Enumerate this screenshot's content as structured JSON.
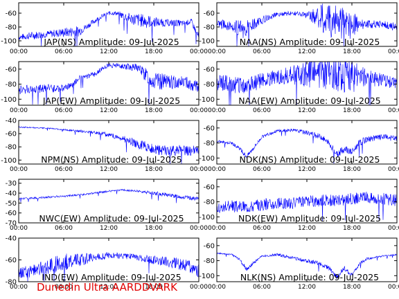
{
  "figure": {
    "footer": "Dunedin Ultra AARDDVARK",
    "line_color": "#0000ff",
    "footer_color": "#e00000"
  },
  "chart_data": [
    {
      "type": "line",
      "title": "JAP(NS) Amplitude: 09-Jul-2025",
      "xlabel": "",
      "ylabel": "",
      "xlim": [
        "00:00",
        "24:00"
      ],
      "x_ticks": [
        "00:00",
        "06:00",
        "12:00",
        "18:00",
        "00:00"
      ],
      "ylim": [
        -108,
        -45
      ],
      "y_ticks": [
        -60,
        -80,
        -100
      ],
      "series": [
        {
          "x": [
            0,
            2,
            4,
            6,
            8,
            9,
            10,
            11,
            12,
            13,
            14,
            15,
            16,
            17,
            18,
            19,
            20,
            21,
            22,
            23,
            24
          ],
          "values": [
            -95,
            -92,
            -90,
            -88,
            -86,
            -80,
            -72,
            -65,
            -60,
            -60,
            -64,
            -68,
            -70,
            -72,
            -72,
            -74,
            -74,
            -74,
            -75,
            -72,
            -95
          ],
          "spread": [
            4,
            6,
            5,
            7,
            8,
            4,
            4,
            3,
            3,
            3,
            6,
            8,
            10,
            10,
            8,
            6,
            5,
            5,
            4,
            4,
            6
          ]
        }
      ]
    },
    {
      "type": "line",
      "title": "NAA(NS) Amplitude: 09-Jul-2025",
      "xlabel": "",
      "ylabel": "",
      "xlim": [
        "00:00",
        "24:00"
      ],
      "x_ticks": [
        "00:00",
        "06:00",
        "12:00",
        "18:00",
        "00:00"
      ],
      "ylim": [
        -108,
        -45
      ],
      "y_ticks": [
        -60,
        -80,
        -100
      ],
      "series": [
        {
          "x": [
            0,
            2,
            3,
            4,
            6,
            8,
            10,
            12,
            13,
            14,
            15,
            16,
            17,
            18,
            19,
            20,
            22,
            24
          ],
          "values": [
            -75,
            -78,
            -84,
            -82,
            -70,
            -62,
            -60,
            -63,
            -65,
            -68,
            -70,
            -72,
            -74,
            -75,
            -76,
            -76,
            -76,
            -80
          ],
          "spread": [
            6,
            8,
            14,
            12,
            6,
            3,
            3,
            4,
            12,
            22,
            25,
            25,
            25,
            22,
            8,
            6,
            5,
            6
          ]
        }
      ]
    },
    {
      "type": "line",
      "title": "JAP(EW) Amplitude: 09-Jul-2025",
      "xlabel": "",
      "ylabel": "",
      "xlim": [
        "00:00",
        "24:00"
      ],
      "x_ticks": [
        "00:00",
        "06:00",
        "12:00",
        "18:00",
        "00:00"
      ],
      "ylim": [
        -108,
        -50
      ],
      "y_ticks": [
        -60,
        -80,
        -100
      ],
      "series": [
        {
          "x": [
            0,
            2,
            4,
            6,
            7,
            8,
            10,
            11,
            12,
            14,
            16,
            17,
            18,
            20,
            22,
            24
          ],
          "values": [
            -88,
            -86,
            -86,
            -85,
            -82,
            -72,
            -68,
            -60,
            -55,
            -56,
            -58,
            -68,
            -75,
            -78,
            -76,
            -85
          ],
          "spread": [
            6,
            6,
            6,
            5,
            4,
            4,
            4,
            3,
            3,
            4,
            6,
            10,
            12,
            10,
            8,
            8
          ]
        }
      ]
    },
    {
      "type": "line",
      "title": "NAA(EW) Amplitude: 09-Jul-2025",
      "xlabel": "",
      "ylabel": "",
      "xlim": [
        "00:00",
        "24:00"
      ],
      "x_ticks": [
        "00:00",
        "06:00",
        "12:00",
        "18:00",
        "00:00"
      ],
      "ylim": [
        -108,
        -50
      ],
      "y_ticks": [
        -60,
        -80,
        -100
      ],
      "series": [
        {
          "x": [
            0,
            2,
            4,
            6,
            8,
            10,
            12,
            14,
            16,
            18,
            20,
            22,
            24
          ],
          "values": [
            -78,
            -80,
            -82,
            -75,
            -70,
            -68,
            -66,
            -65,
            -66,
            -70,
            -72,
            -74,
            -80
          ],
          "spread": [
            10,
            12,
            12,
            10,
            10,
            12,
            18,
            22,
            24,
            22,
            12,
            8,
            8
          ]
        }
      ]
    },
    {
      "type": "line",
      "title": "NPM(NS) Amplitude: 09-Jul-2025",
      "xlabel": "",
      "ylabel": "",
      "xlim": [
        "00:00",
        "24:00"
      ],
      "x_ticks": [
        "00:00",
        "06:00",
        "12:00",
        "18:00",
        "00:00"
      ],
      "ylim": [
        -106,
        -40
      ],
      "y_ticks": [
        -40,
        -60,
        -80,
        -100
      ],
      "series": [
        {
          "x": [
            0,
            2,
            4,
            6,
            8,
            10,
            11,
            12,
            13,
            14,
            15,
            16,
            17,
            18,
            20,
            22,
            24
          ],
          "values": [
            -50,
            -51,
            -52,
            -54,
            -56,
            -58,
            -60,
            -62,
            -64,
            -68,
            -72,
            -76,
            -80,
            -84,
            -86,
            -85,
            -86
          ],
          "spread": [
            1,
            1,
            1,
            1,
            2,
            2,
            3,
            4,
            4,
            5,
            6,
            7,
            8,
            8,
            8,
            8,
            8
          ]
        }
      ]
    },
    {
      "type": "line",
      "title": "NDK(NS) Amplitude: 09-Jul-2025",
      "xlabel": "",
      "ylabel": "",
      "xlim": [
        "00:00",
        "24:00"
      ],
      "x_ticks": [
        "00:00",
        "06:00",
        "12:00",
        "18:00",
        "00:00"
      ],
      "ylim": [
        -108,
        -50
      ],
      "y_ticks": [
        -60,
        -80,
        -100
      ],
      "series": [
        {
          "x": [
            0,
            2,
            3,
            4,
            5,
            6,
            8,
            10,
            12,
            14,
            15,
            16,
            17,
            18,
            19,
            20,
            22,
            24
          ],
          "values": [
            -78,
            -80,
            -88,
            -98,
            -85,
            -72,
            -64,
            -63,
            -66,
            -72,
            -82,
            -95,
            -88,
            -92,
            -80,
            -75,
            -72,
            -74
          ],
          "spread": [
            2,
            2,
            3,
            3,
            3,
            2,
            2,
            2,
            3,
            4,
            5,
            5,
            5,
            5,
            5,
            4,
            4,
            4
          ]
        }
      ]
    },
    {
      "type": "line",
      "title": "NWC(EW) Amplitude: 09-Jul-2025",
      "xlabel": "",
      "ylabel": "",
      "xlim": [
        "00:00",
        "24:00"
      ],
      "x_ticks": [
        "00:00",
        "06:00",
        "12:00",
        "18:00",
        "00:00"
      ],
      "ylim": [
        -70,
        -26
      ],
      "y_ticks": [
        -30,
        -40,
        -50,
        -60,
        -70
      ],
      "series": [
        {
          "x": [
            0,
            2,
            4,
            6,
            8,
            10,
            12,
            14,
            16,
            18,
            20,
            22,
            24
          ],
          "values": [
            -46,
            -45,
            -44,
            -43,
            -42,
            -40,
            -38,
            -37,
            -38,
            -40,
            -42,
            -44,
            -46
          ],
          "spread": [
            1,
            1,
            1,
            1,
            1,
            1,
            1,
            1,
            1,
            2,
            2,
            2,
            2
          ]
        }
      ]
    },
    {
      "type": "line",
      "title": "NDK(EW) Amplitude: 09-Jul-2025",
      "xlabel": "",
      "ylabel": "",
      "xlim": [
        "00:00",
        "24:00"
      ],
      "x_ticks": [
        "00:00",
        "06:00",
        "12:00",
        "18:00",
        "00:00"
      ],
      "ylim": [
        -108,
        -50
      ],
      "y_ticks": [
        -60,
        -80,
        -100
      ],
      "series": [
        {
          "x": [
            0,
            2,
            4,
            6,
            8,
            10,
            12,
            14,
            16,
            18,
            20,
            22,
            24
          ],
          "values": [
            -88,
            -86,
            -86,
            -84,
            -82,
            -82,
            -80,
            -78,
            -78,
            -76,
            -74,
            -76,
            -78
          ],
          "spread": [
            8,
            8,
            8,
            8,
            8,
            8,
            8,
            8,
            8,
            8,
            8,
            8,
            8
          ]
        }
      ]
    },
    {
      "type": "line",
      "title": "IND(EW) Amplitude: 09-Jul-2025",
      "xlabel": "",
      "ylabel": "",
      "xlim": [
        "00:00",
        "24:00"
      ],
      "x_ticks": [
        "00:00",
        "06:00",
        "12:00",
        "18:00",
        "00:00"
      ],
      "ylim": [
        -80,
        -40
      ],
      "y_ticks": [
        -40,
        -60,
        -80
      ],
      "series": [
        {
          "x": [
            0,
            2,
            4,
            6,
            8,
            10,
            12,
            14,
            16,
            18,
            20,
            22,
            24
          ],
          "values": [
            -72,
            -70,
            -66,
            -62,
            -60,
            -58,
            -56,
            -56,
            -58,
            -60,
            -62,
            -64,
            -70
          ],
          "spread": [
            5,
            6,
            7,
            8,
            6,
            4,
            3,
            3,
            3,
            4,
            5,
            6,
            6
          ]
        }
      ]
    },
    {
      "type": "line",
      "title": "NLK(NS) Amplitude: 09-Jul-2025",
      "xlabel": "",
      "ylabel": "",
      "xlim": [
        "00:00",
        "24:00"
      ],
      "x_ticks": [
        "00:00",
        "06:00",
        "12:00",
        "18:00",
        "00:00"
      ],
      "ylim": [
        -108,
        -50
      ],
      "y_ticks": [
        -60,
        -80,
        -100
      ],
      "series": [
        {
          "x": [
            0,
            2,
            3,
            4,
            5,
            6,
            8,
            10,
            12,
            14,
            15,
            16,
            17,
            18,
            19,
            20,
            22,
            24
          ],
          "values": [
            -70,
            -72,
            -78,
            -92,
            -82,
            -74,
            -72,
            -76,
            -80,
            -85,
            -90,
            -102,
            -90,
            -100,
            -84,
            -78,
            -74,
            -72
          ],
          "spread": [
            1,
            1,
            2,
            3,
            2,
            1,
            2,
            2,
            3,
            3,
            3,
            3,
            3,
            3,
            2,
            2,
            1,
            1
          ]
        }
      ]
    }
  ]
}
